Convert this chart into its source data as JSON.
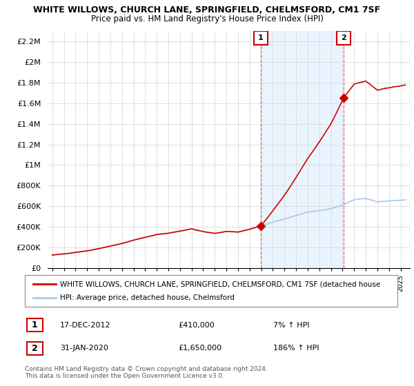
{
  "title": "WHITE WILLOWS, CHURCH LANE, SPRINGFIELD, CHELMSFORD, CM1 7SF",
  "subtitle": "Price paid vs. HM Land Registry's House Price Index (HPI)",
  "ylim": [
    0,
    2300000
  ],
  "xlim": [
    1994.6,
    2025.8
  ],
  "ylabel_ticks": [
    0,
    200000,
    400000,
    600000,
    800000,
    1000000,
    1200000,
    1400000,
    1600000,
    1800000,
    2000000,
    2200000
  ],
  "ylabel_labels": [
    "£0",
    "£200K",
    "£400K",
    "£600K",
    "£800K",
    "£1M",
    "£1.2M",
    "£1.4M",
    "£1.6M",
    "£1.8M",
    "£2M",
    "£2.2M"
  ],
  "hpi_color": "#aac8e8",
  "property_color": "#cc0000",
  "sale1_year": 2012.96,
  "sale1_price": 410000,
  "sale2_year": 2020.08,
  "sale2_price": 1650000,
  "legend_property": "WHITE WILLOWS, CHURCH LANE, SPRINGFIELD, CHELMSFORD, CM1 7SF (detached house",
  "legend_hpi": "HPI: Average price, detached house, Chelmsford",
  "annotation1_date": "17-DEC-2012",
  "annotation1_price": "£410,000",
  "annotation1_hpi": "7% ↑ HPI",
  "annotation2_date": "31-JAN-2020",
  "annotation2_price": "£1,650,000",
  "annotation2_hpi": "186% ↑ HPI",
  "footer": "Contains HM Land Registry data © Crown copyright and database right 2024.\nThis data is licensed under the Open Government Licence v3.0.",
  "background_color": "#ffffff",
  "grid_color": "#dddddd",
  "shade_color": "#ddeeff"
}
